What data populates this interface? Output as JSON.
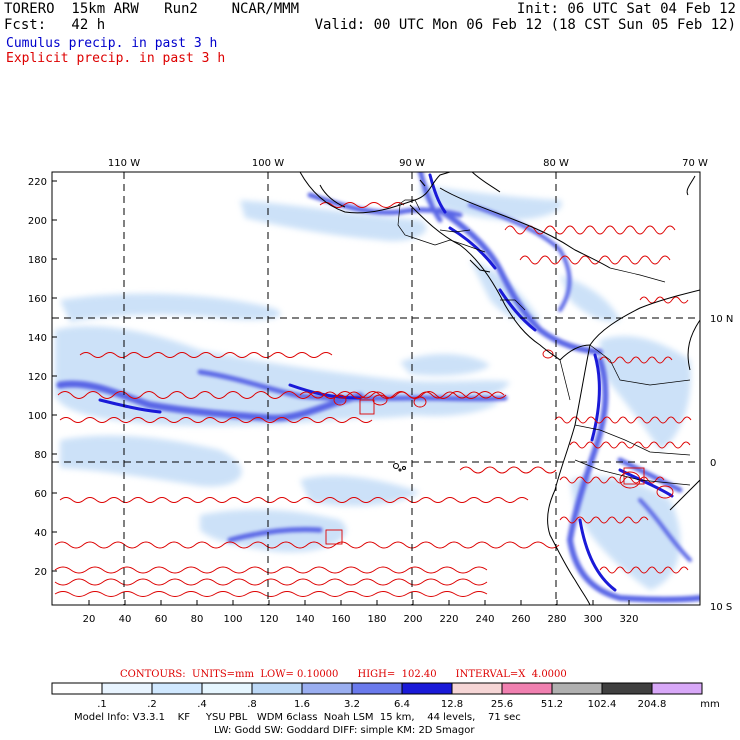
{
  "header": {
    "line1_left": "TORERO  15km ARW   Run2    NCAR/MMM",
    "line1_right": "Init: 06 UTC Sat 04 Feb 12",
    "line2_left": "Fcst:   42 h",
    "line2_right": "Valid: 00 UTC Mon 06 Feb 12 (18 CST Sun 05 Feb 12)",
    "field1": "Cumulus precip. in past 3 h",
    "field2": "Explicit precip. in past 3 h"
  },
  "map": {
    "top_lon_labels": [
      "110 W",
      "100 W",
      "90 W",
      "80 W",
      "70 W"
    ],
    "right_lat_labels": [
      "10 N",
      "0",
      "10 S"
    ],
    "left_y_ticks": [
      "220",
      "200",
      "180",
      "160",
      "140",
      "120",
      "100",
      "80",
      "60",
      "40",
      "20"
    ],
    "bottom_x_ticks": [
      "20",
      "40",
      "60",
      "80",
      "100",
      "120",
      "140",
      "160",
      "180",
      "200",
      "220",
      "240",
      "260",
      "280",
      "300",
      "320"
    ]
  },
  "contours": {
    "label": "CONTOURS:",
    "units": "UNITS=mm",
    "low": "LOW= 0.10000",
    "high": "HIGH=  102.40",
    "interval": "INTERVAL=X  4.0000"
  },
  "colorbar": {
    "labels": [
      ".1",
      ".2",
      ".4",
      ".8",
      "1.6",
      "3.2",
      "6.4",
      "12.8",
      "25.6",
      "51.2",
      "102.4",
      "204.8"
    ],
    "colors": [
      "#ffffff",
      "#e8f4ff",
      "#d0e8ff",
      "#e6f6ff",
      "#bcd8f6",
      "#9aaef0",
      "#6a7aec",
      "#1a1ad8",
      "#f6d6d6",
      "#f080b0",
      "#b0b0b0",
      "#404040",
      "#d8a8f8"
    ],
    "unit": "mm"
  },
  "footer": {
    "line1": "Model Info: V3.3.1    KF     YSU PBL   WDM 6class  Noah LSM  15 km,    44 levels,    71 sec",
    "line2": "LW: Godd SW: Goddard DIFF: simple KM: 2D Smagor"
  }
}
